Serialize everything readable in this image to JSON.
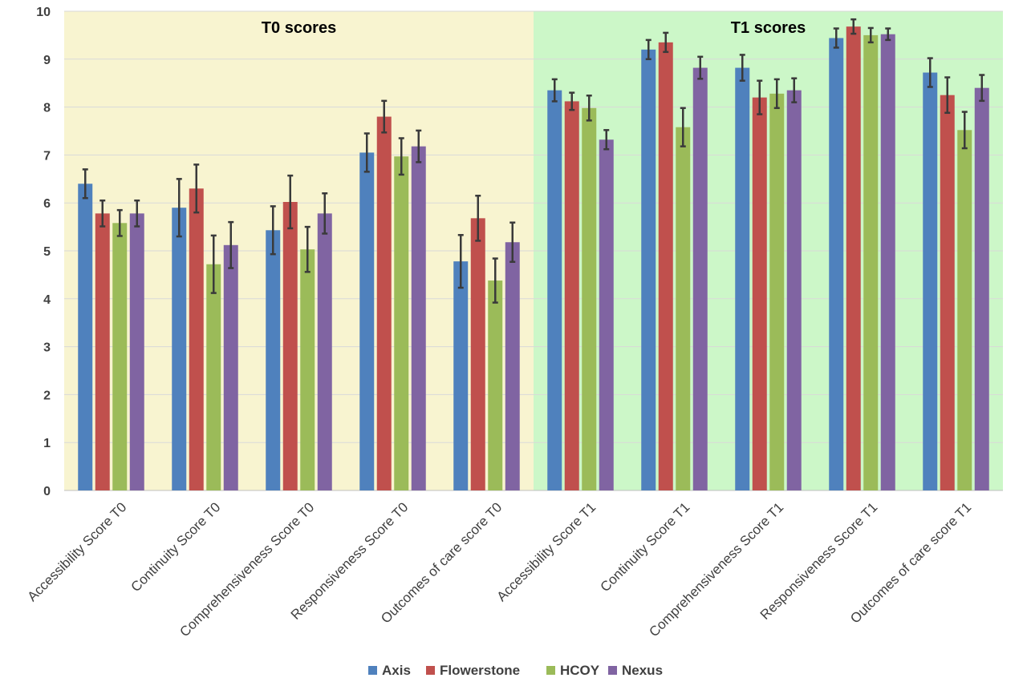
{
  "chart_data": {
    "type": "bar",
    "categories": [
      "Accessibility Score T0",
      "Continuity Score T0",
      "Comprehensiveness Score T0",
      "Responsiveness Score T0",
      "Outcomes of care score T0",
      "Accessibility Score T1",
      "Continuity Score T1",
      "Comprehensiveness Score T1",
      "Responsiveness Score T1",
      "Outcomes of care score T1"
    ],
    "series": [
      {
        "name": "Axis",
        "color": "#4f81bd",
        "values": [
          6.4,
          5.9,
          5.43,
          7.05,
          4.78,
          8.35,
          9.2,
          8.82,
          9.44,
          8.72
        ],
        "error": [
          0.3,
          0.6,
          0.5,
          0.4,
          0.55,
          0.23,
          0.2,
          0.27,
          0.2,
          0.3
        ]
      },
      {
        "name": "Flowerstone",
        "color": "#c0504d",
        "values": [
          5.78,
          6.3,
          6.02,
          7.8,
          5.68,
          8.12,
          9.35,
          8.2,
          9.68,
          8.25
        ],
        "error": [
          0.27,
          0.5,
          0.55,
          0.33,
          0.47,
          0.18,
          0.2,
          0.35,
          0.15,
          0.37
        ]
      },
      {
        "name": "HCOY",
        "color": "#9bbb59",
        "values": [
          5.58,
          4.72,
          5.03,
          6.97,
          4.38,
          7.98,
          7.58,
          8.28,
          9.5,
          7.52
        ],
        "error": [
          0.27,
          0.6,
          0.47,
          0.38,
          0.46,
          0.26,
          0.4,
          0.3,
          0.15,
          0.38
        ]
      },
      {
        "name": "Nexus",
        "color": "#8064a2",
        "values": [
          5.78,
          5.12,
          5.78,
          7.18,
          5.18,
          7.32,
          8.82,
          8.35,
          9.52,
          8.4
        ],
        "error": [
          0.27,
          0.48,
          0.42,
          0.33,
          0.41,
          0.2,
          0.23,
          0.25,
          0.12,
          0.27
        ]
      }
    ],
    "ylim": [
      0,
      10
    ],
    "yticks": [
      0,
      1,
      2,
      3,
      4,
      5,
      6,
      7,
      8,
      9,
      10
    ],
    "grid": true,
    "legend_position": "bottom",
    "panels": [
      {
        "title": "T0 scores",
        "color": "#f8f4d0"
      },
      {
        "title": "T1 scores",
        "color": "#ccf7c8"
      }
    ]
  }
}
